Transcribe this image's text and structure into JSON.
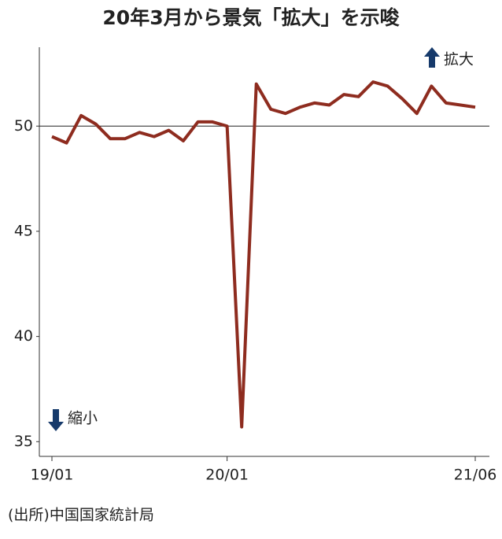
{
  "chart_data": {
    "type": "line",
    "title": "20年3月から景気「拡大」を示唆",
    "categories": [
      "19/01",
      null,
      null,
      null,
      null,
      null,
      null,
      null,
      null,
      null,
      null,
      null,
      "20/01",
      null,
      null,
      null,
      null,
      null,
      null,
      null,
      null,
      null,
      null,
      null,
      null,
      null,
      null,
      null,
      null,
      "21/06"
    ],
    "values": [
      49.5,
      49.2,
      50.5,
      50.1,
      49.4,
      49.4,
      49.7,
      49.5,
      49.8,
      49.3,
      50.2,
      50.2,
      50.0,
      35.7,
      52.0,
      50.8,
      50.6,
      50.9,
      51.1,
      51.0,
      51.5,
      51.4,
      52.1,
      51.9,
      51.3,
      50.6,
      51.9,
      51.1,
      51.0,
      50.9
    ],
    "color": "#8e2c1f",
    "ylim": [
      34.3,
      53.75
    ],
    "yticks": [
      35,
      40,
      45,
      50
    ],
    "reference_line": 50,
    "annotation_up": "拡大",
    "annotation_down": "縮小",
    "source": "(出所)中国国家統計局"
  }
}
